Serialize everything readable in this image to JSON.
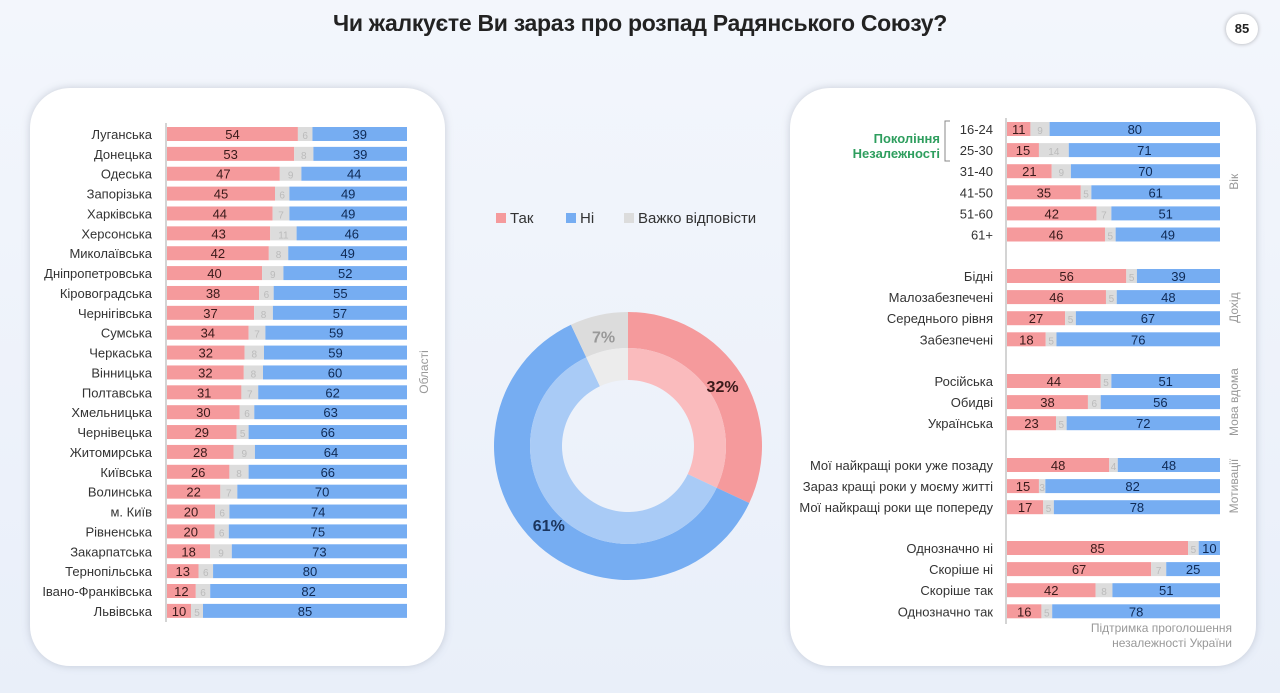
{
  "title": "Чи жалкуєте Ви зараз про розпад Радянського Союзу?",
  "page_number": "85",
  "colors": {
    "yes": "#f59a9c",
    "hard": "#dcdcdc",
    "no": "#76adf2",
    "yes_inner": "#fabbbd",
    "no_inner": "#a9cbf6",
    "hard_inner": "#ececec",
    "green": "#2e9e5e"
  },
  "chart_data": [
    {
      "type": "bar",
      "stacked": true,
      "orientation": "horizontal",
      "group_label": "Області",
      "series_order": [
        "Так",
        "Важко відповісти",
        "Ні"
      ],
      "categories": [
        "Луганська",
        "Донецька",
        "Одеська",
        "Запорізька",
        "Харківська",
        "Херсонська",
        "Миколаївська",
        "Дніпропетровська",
        "Кіровоградська",
        "Чернігівська",
        "Сумська",
        "Черкаська",
        "Вінницька",
        "Полтавська",
        "Хмельницька",
        "Чернівецька",
        "Житомирська",
        "Київська",
        "Волинська",
        "м. Київ",
        "Рівненська",
        "Закарпатська",
        "Тернопільська",
        "Івано-Франківська",
        "Львівська"
      ],
      "yes": [
        54,
        53,
        47,
        45,
        44,
        43,
        42,
        40,
        38,
        37,
        34,
        32,
        32,
        31,
        30,
        29,
        28,
        26,
        22,
        20,
        20,
        18,
        13,
        12,
        10
      ],
      "hard": [
        6,
        8,
        9,
        6,
        7,
        11,
        8,
        9,
        6,
        8,
        7,
        8,
        8,
        7,
        6,
        5,
        9,
        8,
        7,
        6,
        6,
        9,
        6,
        6,
        5
      ],
      "no": [
        39,
        39,
        44,
        49,
        49,
        46,
        49,
        52,
        55,
        57,
        59,
        59,
        60,
        62,
        63,
        66,
        64,
        66,
        70,
        74,
        75,
        73,
        80,
        82,
        85
      ]
    },
    {
      "type": "pie",
      "donut": true,
      "legend": [
        "Так",
        "Ні",
        "Важко відповісти"
      ],
      "legend_placement": "top",
      "slices": [
        {
          "name": "Так",
          "value": 32,
          "label": "32%"
        },
        {
          "name": "Ні",
          "value": 61,
          "label": "61%"
        },
        {
          "name": "Важко відповісти",
          "value": 7,
          "label": "7%"
        }
      ]
    },
    {
      "type": "bar",
      "stacked": true,
      "orientation": "horizontal",
      "series_order": [
        "Так",
        "Важко відповісти",
        "Ні"
      ],
      "bracket_label": [
        "Покоління",
        "Незалежності"
      ],
      "groups": [
        {
          "label": "Вік",
          "categories": [
            "16-24",
            "25-30",
            "31-40",
            "41-50",
            "51-60",
            "61+"
          ],
          "yes": [
            11,
            15,
            21,
            35,
            42,
            46
          ],
          "hard": [
            9,
            14,
            9,
            5,
            7,
            5
          ],
          "no": [
            80,
            71,
            70,
            61,
            51,
            49
          ]
        },
        {
          "label": "Дохід",
          "categories": [
            "Бідні",
            "Малозабезпечені",
            "Середнього рівня",
            "Забезпечені"
          ],
          "yes": [
            56,
            46,
            27,
            18
          ],
          "hard": [
            5,
            5,
            5,
            5
          ],
          "no": [
            39,
            48,
            67,
            76
          ]
        },
        {
          "label": "Мова вдома",
          "categories": [
            "Російська",
            "Обидві",
            "Українська"
          ],
          "yes": [
            44,
            38,
            23
          ],
          "hard": [
            5,
            6,
            5
          ],
          "no": [
            51,
            56,
            72
          ]
        },
        {
          "label": "Мотивації",
          "categories": [
            "Мої найкращі роки уже позаду",
            "Зараз кращі роки у моєму житті",
            "Мої найкращі роки ще попереду"
          ],
          "yes": [
            48,
            15,
            17
          ],
          "hard": [
            4,
            3,
            5
          ],
          "no": [
            48,
            82,
            78
          ]
        },
        {
          "label": "Підтримка проголошення незалежності України",
          "label_lines": [
            "Підтримка проголошення",
            "незалежності України"
          ],
          "categories": [
            "Однозначно ні",
            "Скоріше ні",
            "Скоріше так",
            "Однозначно так"
          ],
          "yes": [
            85,
            67,
            42,
            16
          ],
          "hard": [
            5,
            7,
            8,
            5
          ],
          "no": [
            10,
            25,
            51,
            78
          ]
        }
      ]
    }
  ]
}
